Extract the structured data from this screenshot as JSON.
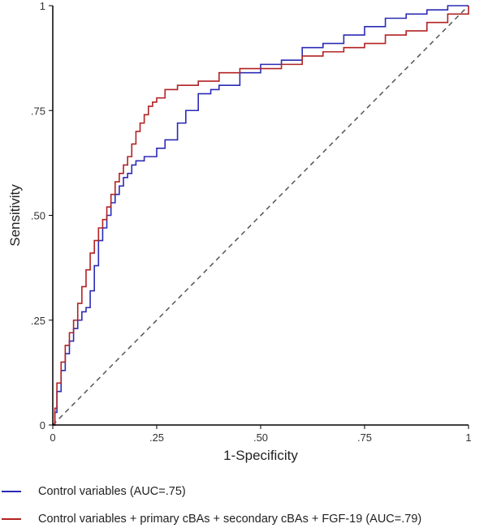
{
  "chart_data": {
    "type": "line",
    "title": "",
    "xlabel": "1-Specificity",
    "ylabel": "Sensitivity",
    "xlim": [
      0,
      1
    ],
    "ylim": [
      0,
      1
    ],
    "x_ticks": [
      {
        "value": 0,
        "label": "0"
      },
      {
        "value": 0.25,
        "label": ".25"
      },
      {
        "value": 0.5,
        "label": ".50"
      },
      {
        "value": 0.75,
        "label": ".75"
      },
      {
        "value": 1,
        "label": "1"
      }
    ],
    "y_ticks": [
      {
        "value": 0,
        "label": "0"
      },
      {
        "value": 0.25,
        "label": ".25"
      },
      {
        "value": 0.5,
        "label": ".50"
      },
      {
        "value": 0.75,
        "label": ".75"
      },
      {
        "value": 1,
        "label": "1"
      }
    ],
    "grid": false,
    "legend_position": "bottom",
    "reference_line": {
      "x": [
        0,
        1
      ],
      "y": [
        0,
        1
      ],
      "style": "dashed",
      "color": "#555555"
    },
    "series": [
      {
        "name": "Control variables (AUC=.75)",
        "color": "#2b2bb5",
        "x": [
          0,
          0.005,
          0.01,
          0.02,
          0.03,
          0.04,
          0.05,
          0.06,
          0.07,
          0.08,
          0.09,
          0.1,
          0.11,
          0.12,
          0.13,
          0.14,
          0.15,
          0.16,
          0.17,
          0.18,
          0.19,
          0.2,
          0.22,
          0.25,
          0.27,
          0.3,
          0.32,
          0.35,
          0.38,
          0.4,
          0.45,
          0.5,
          0.53,
          0.55,
          0.6,
          0.65,
          0.7,
          0.75,
          0.8,
          0.85,
          0.9,
          0.95,
          1
        ],
        "y": [
          0,
          0.03,
          0.08,
          0.13,
          0.17,
          0.2,
          0.23,
          0.25,
          0.27,
          0.28,
          0.32,
          0.38,
          0.44,
          0.47,
          0.5,
          0.53,
          0.55,
          0.57,
          0.59,
          0.6,
          0.62,
          0.63,
          0.64,
          0.66,
          0.68,
          0.72,
          0.75,
          0.79,
          0.8,
          0.81,
          0.84,
          0.86,
          0.86,
          0.87,
          0.9,
          0.91,
          0.93,
          0.95,
          0.97,
          0.98,
          0.99,
          1,
          1
        ]
      },
      {
        "name": "Control variables + primary cBAs + secondary cBAs + FGF-19 (AUC=.79)",
        "color": "#b22222",
        "x": [
          0,
          0.005,
          0.01,
          0.02,
          0.03,
          0.04,
          0.05,
          0.06,
          0.07,
          0.08,
          0.09,
          0.1,
          0.11,
          0.12,
          0.13,
          0.14,
          0.15,
          0.16,
          0.17,
          0.18,
          0.19,
          0.2,
          0.21,
          0.22,
          0.23,
          0.24,
          0.25,
          0.27,
          0.3,
          0.35,
          0.4,
          0.45,
          0.5,
          0.55,
          0.6,
          0.65,
          0.7,
          0.75,
          0.8,
          0.85,
          0.9,
          0.95,
          1
        ],
        "y": [
          0,
          0.04,
          0.1,
          0.15,
          0.19,
          0.22,
          0.25,
          0.29,
          0.33,
          0.37,
          0.41,
          0.44,
          0.47,
          0.49,
          0.52,
          0.55,
          0.58,
          0.6,
          0.62,
          0.64,
          0.67,
          0.7,
          0.72,
          0.74,
          0.76,
          0.77,
          0.78,
          0.8,
          0.81,
          0.82,
          0.84,
          0.85,
          0.85,
          0.86,
          0.88,
          0.89,
          0.9,
          0.91,
          0.93,
          0.94,
          0.96,
          0.98,
          1
        ]
      }
    ]
  }
}
